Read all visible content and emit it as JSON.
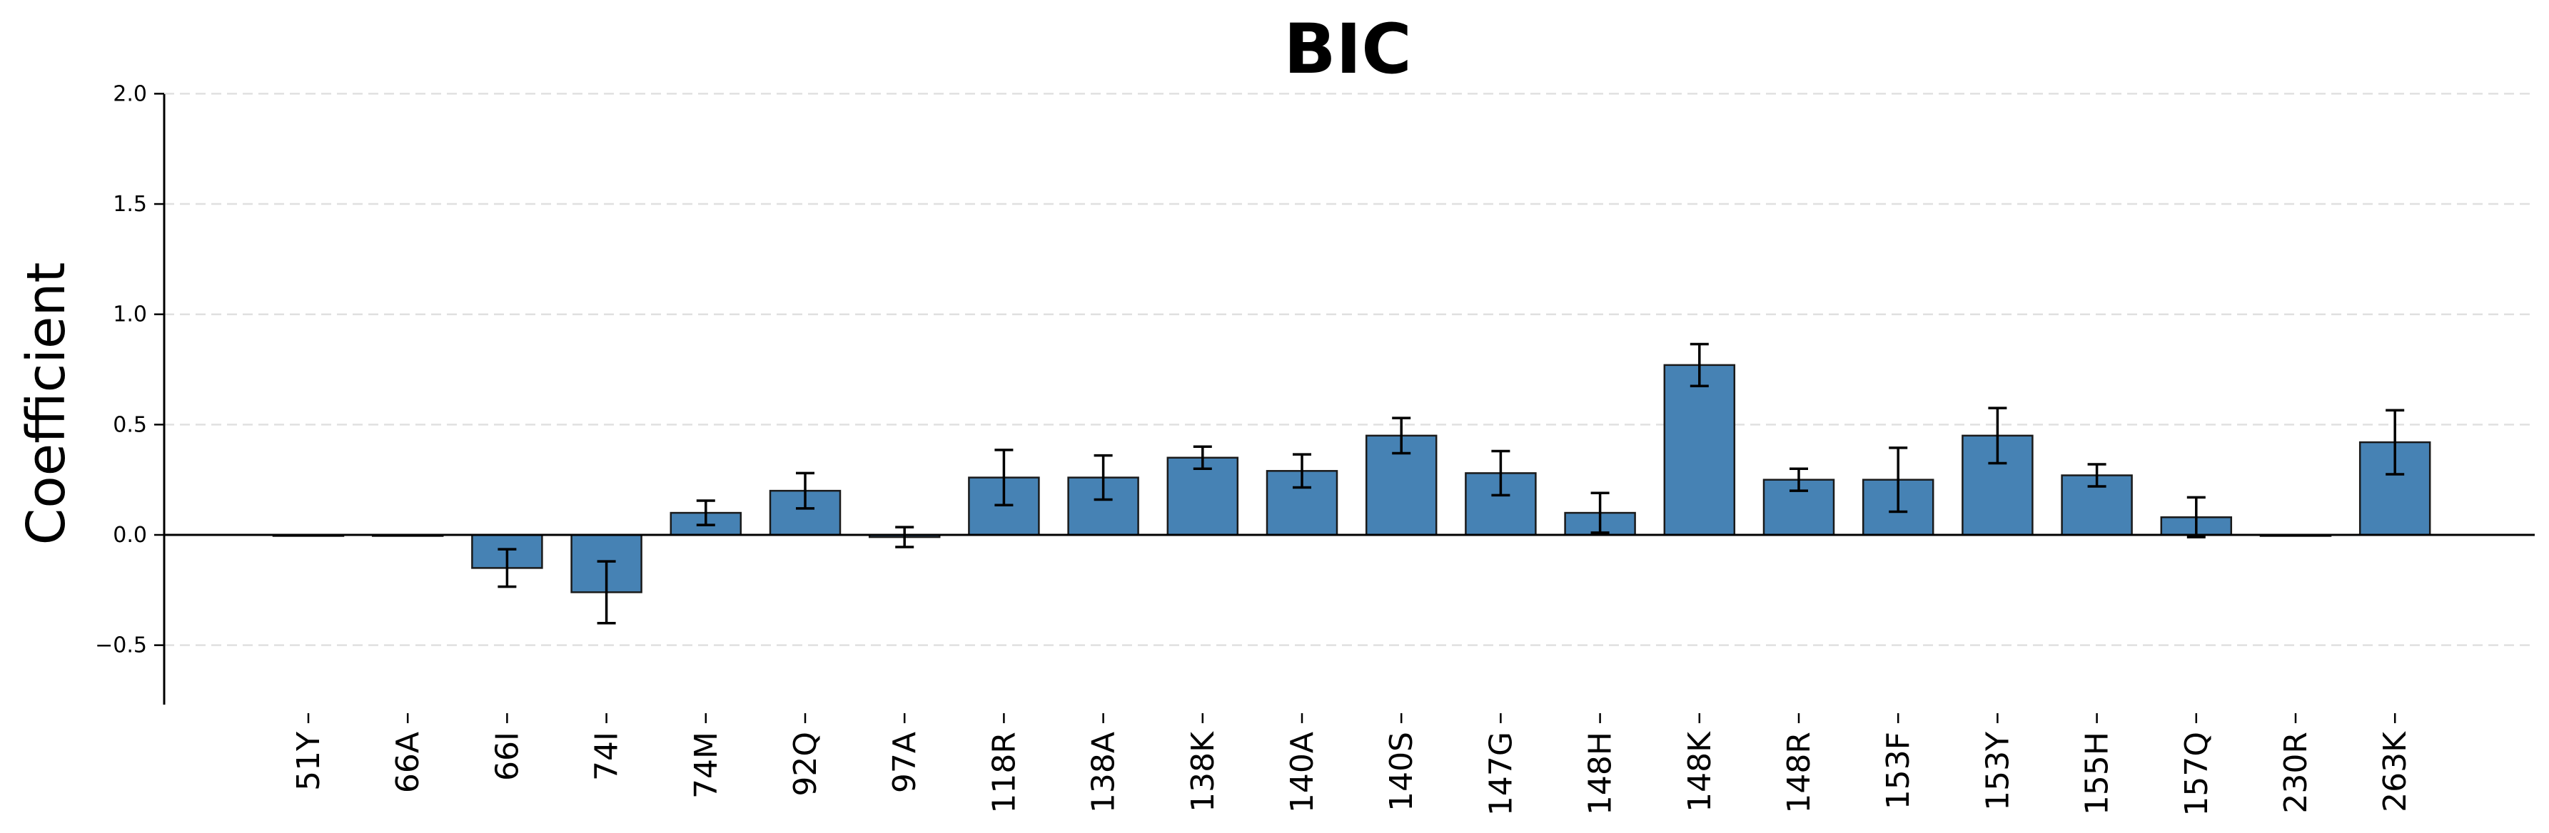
{
  "chart_data": {
    "type": "bar",
    "title": "BIC",
    "xlabel": "",
    "ylabel": "Coefficient",
    "ylim": [
      -0.77,
      2.0
    ],
    "yticks": [
      -0.5,
      0.0,
      0.5,
      1.0,
      1.5,
      2.0
    ],
    "ytick_labels": [
      "−0.5",
      "0.0",
      "0.5",
      "1.0",
      "1.5",
      "2.0"
    ],
    "grid": "horizontal dashed",
    "bar_color": "#4682b4",
    "categories": [
      "51Y",
      "66A",
      "66I",
      "74I",
      "74M",
      "92Q",
      "97A",
      "118R",
      "138A",
      "138K",
      "140A",
      "140S",
      "147G",
      "148H",
      "148K",
      "148R",
      "153F",
      "153Y",
      "155H",
      "157Q",
      "230R",
      "263K"
    ],
    "values": [
      0.0,
      0.0,
      -0.15,
      -0.26,
      0.1,
      0.2,
      -0.01,
      0.26,
      0.26,
      0.35,
      0.29,
      0.45,
      0.28,
      0.1,
      0.77,
      0.25,
      0.25,
      0.45,
      0.27,
      0.08,
      0.0,
      0.42
    ],
    "errors": [
      0.0,
      0.0,
      0.085,
      0.14,
      0.055,
      0.08,
      0.045,
      0.125,
      0.1,
      0.05,
      0.075,
      0.08,
      0.1,
      0.09,
      0.095,
      0.05,
      0.145,
      0.125,
      0.05,
      0.09,
      0.0,
      0.145
    ]
  }
}
